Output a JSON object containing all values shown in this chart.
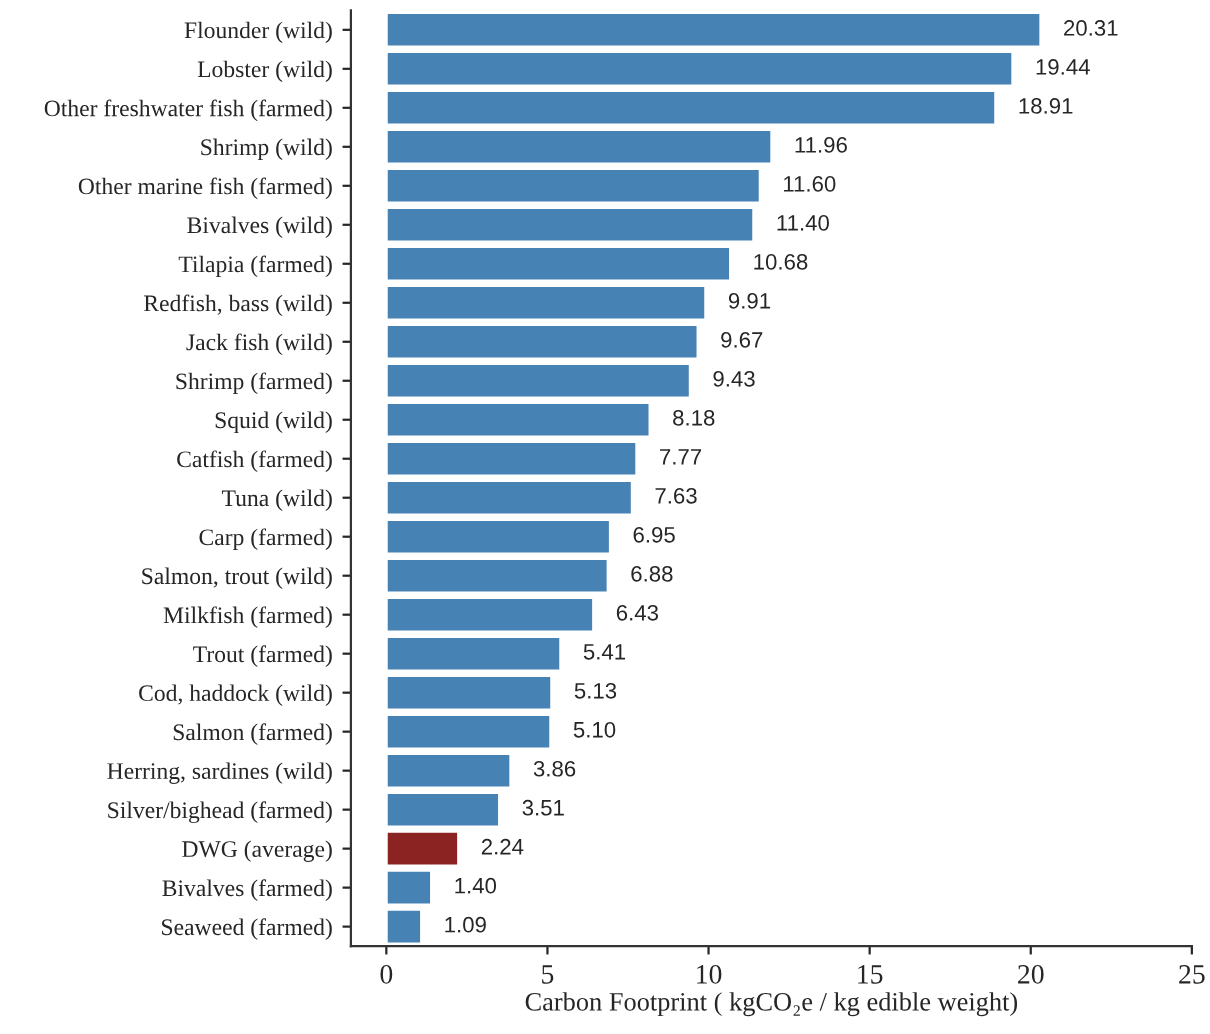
{
  "chart_data": {
    "type": "bar",
    "orientation": "horizontal",
    "xlabel": "Carbon Footprint ( kgCO₂e / kg edible weight)",
    "categories": [
      "Flounder (wild)",
      "Lobster (wild)",
      "Other freshwater fish (farmed)",
      "Shrimp (wild)",
      "Other marine fish (farmed)",
      "Bivalves (wild)",
      "Tilapia (farmed)",
      "Redfish, bass (wild)",
      "Jack fish (wild)",
      "Shrimp (farmed)",
      "Squid (wild)",
      "Catfish (farmed)",
      "Tuna (wild)",
      "Carp (farmed)",
      "Salmon, trout (wild)",
      "Milkfish (farmed)",
      "Trout (farmed)",
      "Cod, haddock (wild)",
      "Salmon (farmed)",
      "Herring, sardines (wild)",
      "Silver/bighead (farmed)",
      "DWG (average)",
      "Bivalves (farmed)",
      "Seaweed (farmed)"
    ],
    "values": [
      20.31,
      19.44,
      18.91,
      11.96,
      11.6,
      11.4,
      10.68,
      9.91,
      9.67,
      9.43,
      8.18,
      7.77,
      7.63,
      6.95,
      6.88,
      6.43,
      5.41,
      5.13,
      5.1,
      3.86,
      3.51,
      2.24,
      1.4,
      1.09
    ],
    "value_labels": [
      "20.31",
      "19.44",
      "18.91",
      "11.96",
      "11.60",
      "11.40",
      "10.68",
      "9.91",
      "9.67",
      "9.43",
      "8.18",
      "7.77",
      "7.63",
      "6.95",
      "6.88",
      "6.43",
      "5.41",
      "5.13",
      "5.10",
      "3.86",
      "3.51",
      "2.24",
      "1.40",
      "1.09"
    ],
    "colors": [
      "#4682b4",
      "#4682b4",
      "#4682b4",
      "#4682b4",
      "#4682b4",
      "#4682b4",
      "#4682b4",
      "#4682b4",
      "#4682b4",
      "#4682b4",
      "#4682b4",
      "#4682b4",
      "#4682b4",
      "#4682b4",
      "#4682b4",
      "#4682b4",
      "#4682b4",
      "#4682b4",
      "#4682b4",
      "#4682b4",
      "#4682b4",
      "#8b2323",
      "#4682b4",
      "#4682b4"
    ],
    "xlim": [
      -1.1,
      25
    ],
    "xticks": [
      0,
      5,
      10,
      15,
      20,
      25
    ],
    "grid": false,
    "legend": false
  }
}
